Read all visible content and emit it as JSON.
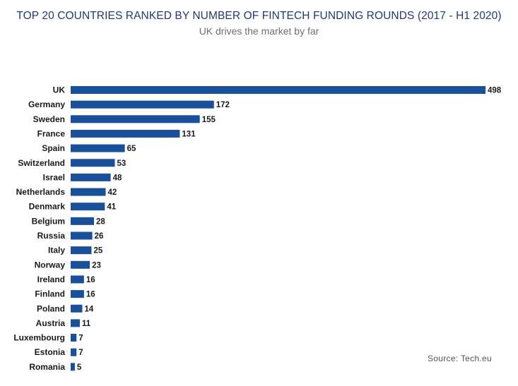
{
  "title": "TOP 20 COUNTRIES RANKED BY NUMBER OF FINTECH FUNDING ROUNDS (2017 - H1 2020)",
  "subtitle": "UK drives the market by far",
  "source": "Source: Tech.eu",
  "bar_color": "#1a4f9c",
  "chart_data": {
    "type": "bar",
    "orientation": "horizontal",
    "categories": [
      "UK",
      "Germany",
      "Sweden",
      "France",
      "Spain",
      "Switzerland",
      "Israel",
      "Netherlands",
      "Denmark",
      "Belgium",
      "Russia",
      "Italy",
      "Norway",
      "Ireland",
      "Finland",
      "Poland",
      "Austria",
      "Luxembourg",
      "Estonia",
      "Romania"
    ],
    "values": [
      498,
      172,
      155,
      131,
      65,
      53,
      48,
      42,
      41,
      28,
      26,
      25,
      23,
      16,
      16,
      14,
      11,
      7,
      7,
      5
    ],
    "value_labels": [
      "498",
      "172",
      "155",
      "131",
      "65",
      "53",
      "48",
      "42",
      "41",
      "28",
      "26",
      "25",
      "23",
      "16",
      "16",
      "14",
      "11",
      "7",
      "7",
      "5"
    ],
    "xlim": [
      0,
      498
    ],
    "grid": false,
    "legend": "none"
  }
}
